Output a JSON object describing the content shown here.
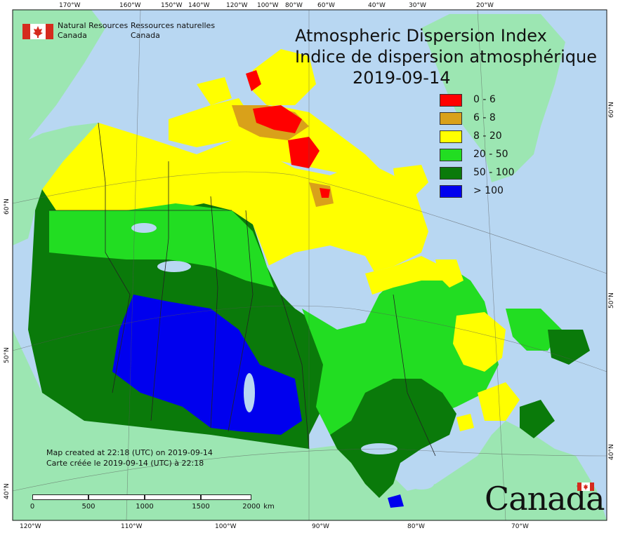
{
  "title_en": "Atmospheric Dispersion Index",
  "title_fr": "Indice de dispersion atmosphérique",
  "date": "2019-09-14",
  "agency": {
    "name_en_1": "Natural Resources",
    "name_en_2": "Canada",
    "name_fr_1": "Ressources naturelles",
    "name_fr_2": "Canada"
  },
  "legend": [
    {
      "label": "0 - 6",
      "color": "#ff0000"
    },
    {
      "label": "6 - 8",
      "color": "#d9a11a"
    },
    {
      "label": "8 - 20",
      "color": "#ffff00"
    },
    {
      "label": "20 - 50",
      "color": "#22dd22"
    },
    {
      "label": "50 - 100",
      "color": "#0a7a0a"
    },
    {
      "label": "> 100",
      "color": "#0000ee"
    }
  ],
  "credit_en": "Map created at 22:18 (UTC) on 2019-09-14",
  "credit_fr": "Carte créée le 2019-09-14 (UTC) à 22:18",
  "scale": {
    "ticks": [
      "0",
      "500",
      "1000",
      "1500",
      "2000"
    ],
    "unit": "km"
  },
  "wordmark": "Canada",
  "lon_top": [
    "170°W",
    "160°W",
    "150°W",
    "140°W",
    "120°W",
    "100°W",
    "80°W",
    "60°W",
    "40°W",
    "30°W",
    "20°W"
  ],
  "lon_bottom": [
    "120°W",
    "110°W",
    "100°W",
    "90°W",
    "80°W",
    "70°W"
  ],
  "lat_left": [
    "60°N",
    "50°N",
    "40°N"
  ],
  "lat_right": [
    "60°N",
    "50°N",
    "40°N"
  ],
  "colors": {
    "ocean": "#b8d7f2",
    "land_other": "#9ce6b2",
    "water": "#b8d7f2"
  }
}
